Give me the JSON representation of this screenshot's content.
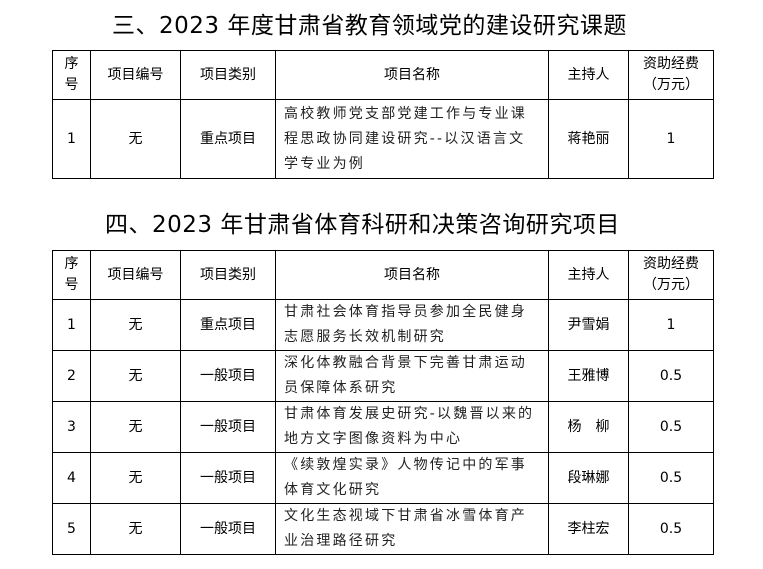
{
  "sections": [
    {
      "title": "三、2023 年度甘肃省教育领域党的建设研究课题",
      "headers": [
        "序号",
        "项目编号",
        "项目类别",
        "项目名称",
        "主持人",
        "资助经费（万元）"
      ],
      "rows": [
        [
          "1",
          "无",
          "重点项目",
          "高校教师党支部党建工作与专业课程思政协同建设研究--以汉语言文学专业为例",
          "蒋艳丽",
          "1"
        ]
      ]
    },
    {
      "title": "四、2023 年甘肃省体育科研和决策咨询研究项目",
      "headers": [
        "序号",
        "项目编号",
        "项目类别",
        "项目名称",
        "主持人",
        "资助经费（万元）"
      ],
      "rows": [
        [
          "1",
          "无",
          "重点项目",
          "甘肃社会体育指导员参加全民健身志愿服务长效机制研究",
          "尹雪娟",
          "1"
        ],
        [
          "2",
          "无",
          "一般项目",
          "深化体教融合背景下完善甘肃运动员保障体系研究",
          "王雅博",
          "0.5"
        ],
        [
          "3",
          "无",
          "一般项目",
          "甘肃体育发展史研究-以魏晋以来的地方文字图像资料为中心",
          "杨　柳",
          "0.5"
        ],
        [
          "4",
          "无",
          "一般项目",
          "《续敦煌实录》人物传记中的军事体育文化研究",
          "段琳娜",
          "0.5"
        ],
        [
          "5",
          "无",
          "一般项目",
          "文化生态视域下甘肃省冰雪体育产业治理路径研究",
          "李柱宏",
          "0.5"
        ]
      ]
    }
  ]
}
